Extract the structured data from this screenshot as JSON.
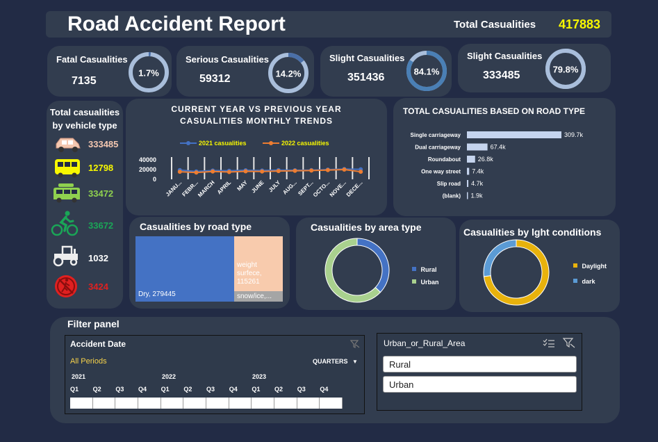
{
  "header": {
    "title": "Road Accident Report",
    "total_label": "Total Casualities",
    "total_value": "417883"
  },
  "kpis": [
    {
      "label": "Fatal Casualities",
      "value": "7135",
      "percent_text": "1.7%",
      "fraction": 0.017
    },
    {
      "label": "Serious Casualities",
      "value": "59312",
      "percent_text": "14.2%",
      "fraction": 0.142
    },
    {
      "label": "Slight Casualities",
      "value": "351436",
      "percent_text": "84.1%",
      "fraction": 0.841
    },
    {
      "label": "Slight Casualities",
      "value": "333485",
      "percent_text": "79.8%",
      "fraction": 0.798
    }
  ],
  "vehicles": {
    "title_line1": "Total casualities",
    "title_line2": "by vehicle type",
    "items": [
      {
        "icon": "car-icon",
        "value": "333485",
        "color": "#f4c7b0"
      },
      {
        "icon": "bus-icon",
        "value": "12798",
        "color": "#f7f700"
      },
      {
        "icon": "van-icon",
        "value": "33472",
        "color": "#8fd14f"
      },
      {
        "icon": "bicycle-icon",
        "value": "33672",
        "color": "#1aa657"
      },
      {
        "icon": "tractor-icon",
        "value": "1032",
        "color": "#ffffff"
      },
      {
        "icon": "no-pedestrian-icon",
        "value": "3424",
        "color": "#e02020"
      }
    ]
  },
  "trend": {
    "title_line1": "CURRENT YEAR VS PREVIOUS YEAR",
    "title_line2": "CASUALITIES MONTHLY TRENDS",
    "chart_data": {
      "type": "line",
      "categories": [
        "JANU...",
        "FEBR...",
        "MARCH",
        "APRIL",
        "MAY",
        "JUNE",
        "JULY",
        "AUG...",
        "SEPT...",
        "OCTO...",
        "NOVE...",
        "DECE..."
      ],
      "yticks": [
        "40000",
        "20000",
        "0"
      ],
      "ylim": [
        0,
        40000
      ],
      "series": [
        {
          "name": "2021 casualities",
          "color": "#4472c4",
          "values": [
            19000,
            16000,
            18000,
            17500,
            18500,
            18000,
            19000,
            18500,
            19000,
            20000,
            21000,
            20500
          ]
        },
        {
          "name": "2022 casualities",
          "color": "#ed7d31",
          "values": [
            15500,
            14000,
            16000,
            15000,
            16500,
            16000,
            17000,
            17500,
            18000,
            19000,
            20000,
            15500
          ]
        }
      ]
    }
  },
  "road_type": {
    "title": "TOTAL CASUALITIES BASED ON ROAD TYPE",
    "chart_data": {
      "type": "bar",
      "orientation": "horizontal",
      "categories": [
        "Single carriageway",
        "Dual carriageway",
        "Roundabout",
        "One way street",
        "Slip road",
        "(blank)"
      ],
      "values": [
        309.7,
        67.4,
        26.8,
        7.4,
        4.7,
        1.9
      ],
      "labels": [
        "309.7k",
        "67.4k",
        "26.8k",
        "7.4k",
        "4.7k",
        "1.9k"
      ]
    }
  },
  "surface": {
    "title": "Casualities by road type",
    "chart_data": {
      "type": "treemap",
      "items": [
        {
          "label": "Dry, 279445",
          "value": 279445,
          "color": "#4472c4"
        },
        {
          "label": "weight surfece, 115261",
          "value": 115261,
          "color": "#f8cbad"
        },
        {
          "label": "snow/ice,...",
          "value": 23177,
          "color": "#a5a5a5"
        }
      ]
    }
  },
  "area": {
    "title": "Casualities by area type",
    "chart_data": {
      "type": "pie",
      "categories": [
        "Rural",
        "Urban"
      ],
      "values": [
        0.37,
        0.63
      ],
      "colors": [
        "#4472c4",
        "#a9d18e"
      ]
    }
  },
  "light": {
    "title": "Casualities by lght conditions",
    "chart_data": {
      "type": "pie",
      "categories": [
        "Daylight",
        "dark"
      ],
      "values": [
        0.73,
        0.27
      ],
      "colors": [
        "#e8b20c",
        "#5b9bd5"
      ]
    }
  },
  "filter": {
    "title": "Filter panel",
    "date": {
      "title": "Accident Date",
      "period": "All Periods",
      "level": "QUARTERS",
      "years": [
        "2021",
        "2022",
        "2023"
      ],
      "quarters": [
        "Q1",
        "Q2",
        "Q3",
        "Q4",
        "Q1",
        "Q2",
        "Q3",
        "Q4",
        "Q1",
        "Q2",
        "Q3",
        "Q4"
      ]
    },
    "area": {
      "title": "Urban_or_Rural_Area",
      "options": [
        "Rural",
        "Urban"
      ]
    }
  }
}
